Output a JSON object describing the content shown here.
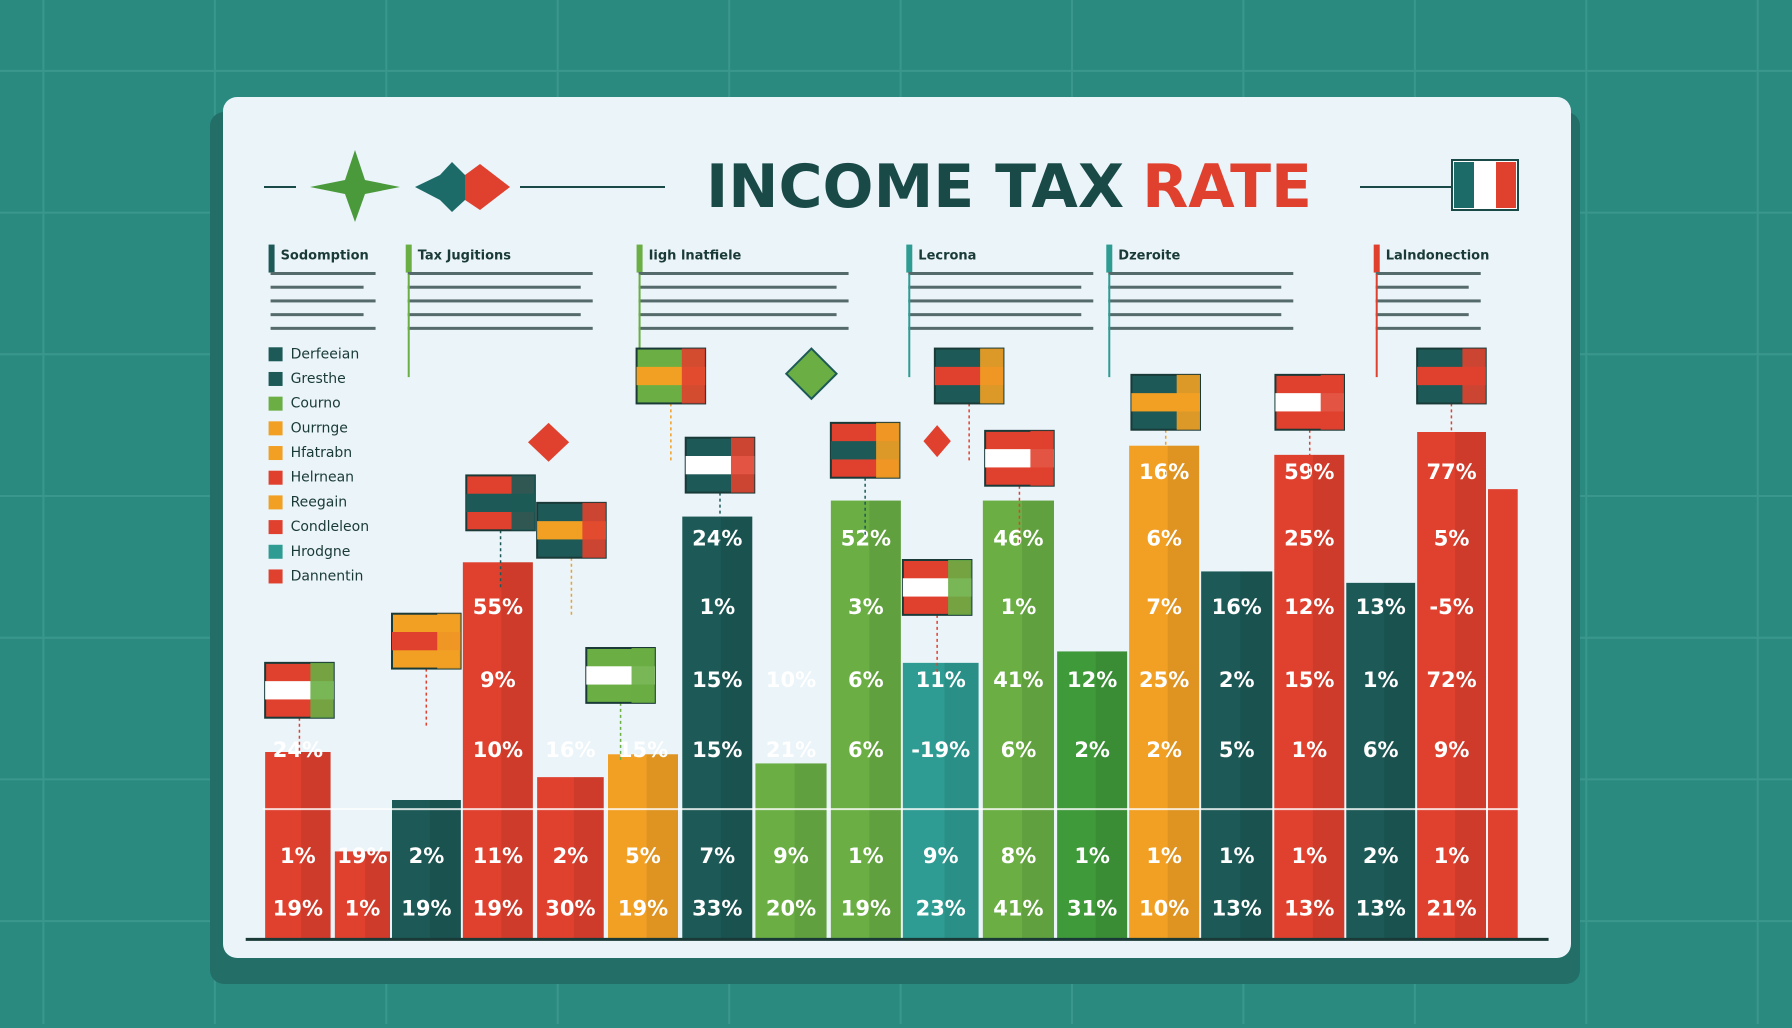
{
  "title": {
    "main": "INCOME TAX",
    "accent": "RATE"
  },
  "notes": [
    "Sodomption",
    "Tax Jugitions",
    "Iigh lnatfiele",
    "Lecrona",
    "Dzeroite",
    "Lalndonection"
  ],
  "legend": [
    "Derfeeian",
    "Gresthe",
    "Courno",
    "Ourrnge",
    "Hfatrabn",
    "Helrnean",
    "Reegain",
    "Condleleon",
    "Hrodgne",
    "Dannentin"
  ],
  "columns": [
    {
      "labels": [
        "24%",
        "1%",
        "19%"
      ]
    },
    {
      "labels": [
        "19%",
        "1%"
      ]
    },
    {
      "labels": [
        "2%",
        "19%"
      ]
    },
    {
      "labels": [
        "55%",
        "9%",
        "10%",
        "11%",
        "19%"
      ]
    },
    {
      "labels": [
        "16%",
        "2%",
        "30%"
      ]
    },
    {
      "labels": [
        "15%",
        "5%",
        "19%"
      ]
    },
    {
      "labels": [
        "24%",
        "1%",
        "15%",
        "15%",
        "7%",
        "33%"
      ]
    },
    {
      "labels": [
        "10%",
        "21%",
        "9%",
        "20%"
      ]
    },
    {
      "labels": [
        "52%",
        "3%",
        "6%",
        "6%",
        "1%",
        "19%"
      ]
    },
    {
      "labels": [
        "11%",
        "-19%",
        "9%",
        "23%"
      ]
    },
    {
      "labels": [
        "46%",
        "1%",
        "41%",
        "6%",
        "8%",
        "41%"
      ]
    },
    {
      "labels": [
        "12%",
        "2%",
        "1%",
        "31%"
      ]
    },
    {
      "labels": [
        "16%",
        "6%",
        "7%",
        "25%",
        "2%",
        "1%",
        "10%"
      ]
    },
    {
      "labels": [
        "16%",
        "2%",
        "5%",
        "1%",
        "13%"
      ]
    },
    {
      "labels": [
        "59%",
        "25%",
        "12%",
        "15%",
        "1%",
        "1%",
        "13%"
      ]
    },
    {
      "labels": [
        "13%",
        "1%",
        "6%",
        "2%",
        "13%"
      ]
    },
    {
      "labels": [
        "77%",
        "5%",
        "-5%",
        "72%",
        "9%",
        "1%",
        "21%"
      ]
    }
  ]
}
